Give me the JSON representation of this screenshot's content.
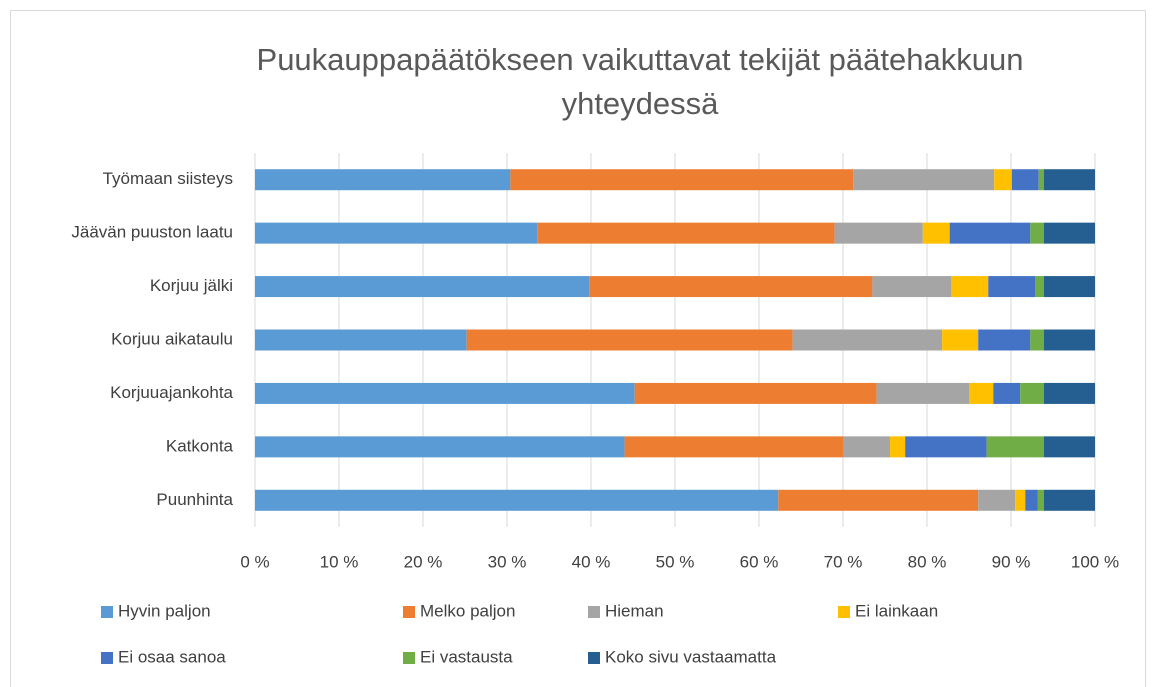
{
  "chart_data": {
    "type": "stacked_barh",
    "title": "Puukauppapäätökseen vaikuttavat tekijät päätehakkuun yhteydessä",
    "categories": [
      "Työmaan siisteys",
      "Jäävän puuston laatu",
      "Korjuu jälki",
      "Korjuu aikataulu",
      "Korjuuajankohta",
      "Katkonta",
      "Puunhinta"
    ],
    "series": [
      {
        "name": "Hyvin paljon",
        "color": "#5b9bd5",
        "values": [
          30.4,
          33.6,
          39.8,
          25.2,
          45.2,
          44.0,
          62.3
        ]
      },
      {
        "name": "Melko paljon",
        "color": "#ed7d31",
        "values": [
          40.8,
          35.4,
          33.7,
          38.8,
          28.8,
          26.1,
          23.8
        ]
      },
      {
        "name": "Hieman",
        "color": "#a5a5a5",
        "values": [
          16.8,
          10.5,
          9.4,
          17.8,
          11.0,
          5.5,
          4.4
        ]
      },
      {
        "name": "Ei lainkaan",
        "color": "#ffc000",
        "values": [
          2.1,
          3.2,
          4.4,
          4.3,
          2.9,
          1.8,
          1.2
        ]
      },
      {
        "name": "Ei osaa sanoa",
        "color": "#4472c4",
        "values": [
          3.2,
          9.6,
          5.6,
          6.2,
          3.2,
          9.7,
          1.5
        ]
      },
      {
        "name": "Ei vastausta",
        "color": "#70ad47",
        "values": [
          0.6,
          1.6,
          1.0,
          1.6,
          2.8,
          6.8,
          0.7
        ]
      },
      {
        "name": "Koko sivu vastaamatta",
        "color": "#255e91",
        "values": [
          6.1,
          6.1,
          6.1,
          6.1,
          6.1,
          6.1,
          6.1
        ]
      }
    ],
    "xlim": [
      0,
      100
    ],
    "xticks": [
      {
        "value": 0,
        "label": "0 %"
      },
      {
        "value": 10,
        "label": "10 %"
      },
      {
        "value": 20,
        "label": "20 %"
      },
      {
        "value": 30,
        "label": "30 %"
      },
      {
        "value": 40,
        "label": "40 %"
      },
      {
        "value": 50,
        "label": "50 %"
      },
      {
        "value": 60,
        "label": "60 %"
      },
      {
        "value": 70,
        "label": "70 %"
      },
      {
        "value": 80,
        "label": "80 %"
      },
      {
        "value": 90,
        "label": "90 %"
      },
      {
        "value": 100,
        "label": "100 %"
      }
    ],
    "grid": true,
    "legend": "bottom"
  }
}
